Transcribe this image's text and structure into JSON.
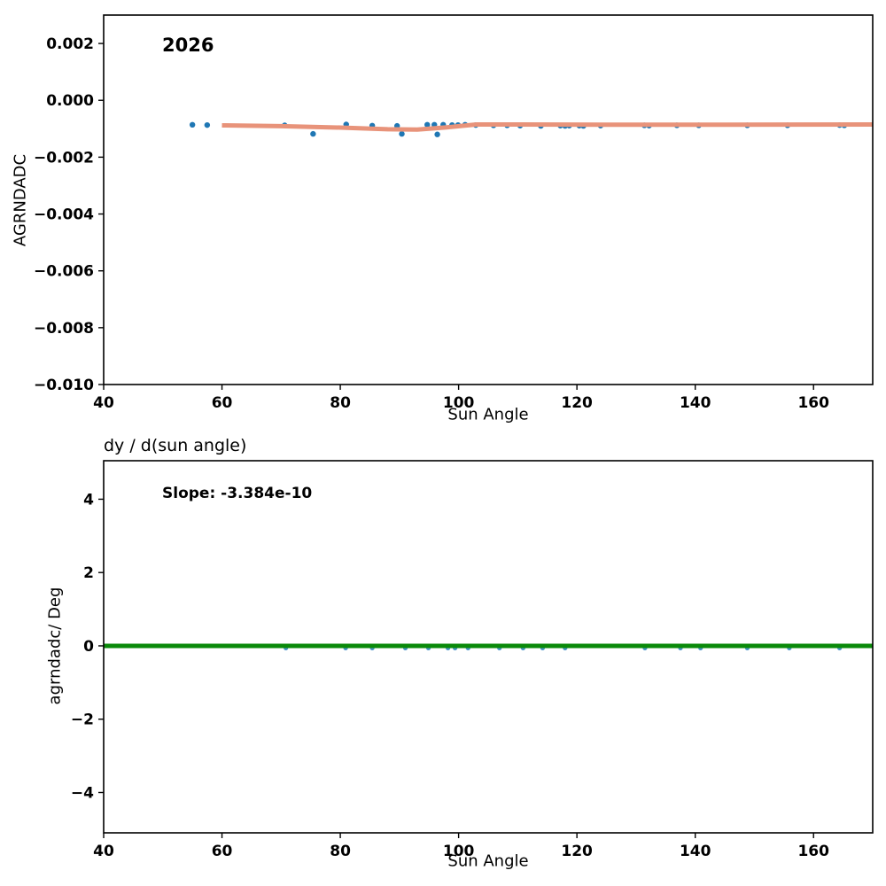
{
  "figure": {
    "background": "#ffffff",
    "spine_color": "#000000"
  },
  "chart_data": [
    {
      "type": "scatter",
      "name": "agrndadc-vs-sun-angle",
      "annotation": "2026",
      "xlabel": "Sun Angle",
      "ylabel": "AGRNDADC",
      "xlim": [
        40,
        170
      ],
      "ylim": [
        -0.01,
        0.003
      ],
      "grid": false,
      "x_ticks": [
        {
          "v": 40,
          "label": "40"
        },
        {
          "v": 60,
          "label": "60"
        },
        {
          "v": 80,
          "label": "80"
        },
        {
          "v": 100,
          "label": "100"
        },
        {
          "v": 120,
          "label": "120"
        },
        {
          "v": 140,
          "label": "140"
        },
        {
          "v": 160,
          "label": "160"
        }
      ],
      "y_ticks": [
        {
          "v": 0.002,
          "label": "0.002"
        },
        {
          "v": 0.0,
          "label": "0.000"
        },
        {
          "v": -0.002,
          "label": "−0.002"
        },
        {
          "v": -0.004,
          "label": "−0.004"
        },
        {
          "v": -0.006,
          "label": "−0.006"
        },
        {
          "v": -0.008,
          "label": "−0.008"
        },
        {
          "v": -0.01,
          "label": "−0.010"
        }
      ],
      "point_color": "#1f77b4",
      "point_radius": 3.2,
      "points": [
        [
          55.0,
          -0.00086
        ],
        [
          57.5,
          -0.00087
        ],
        [
          70.6,
          -0.00088
        ],
        [
          75.4,
          -0.00118
        ],
        [
          81.0,
          -0.00085
        ],
        [
          85.4,
          -0.00089
        ],
        [
          89.6,
          -0.0009
        ],
        [
          90.4,
          -0.00118
        ],
        [
          94.7,
          -0.00086
        ],
        [
          95.9,
          -0.00086
        ],
        [
          96.4,
          -0.0012
        ],
        [
          97.4,
          -0.00086
        ],
        [
          98.9,
          -0.00087
        ],
        [
          99.9,
          -0.00087
        ],
        [
          101.1,
          -0.00086
        ],
        [
          102.9,
          -0.00087
        ],
        [
          105.9,
          -0.00088
        ],
        [
          108.2,
          -0.00088
        ],
        [
          110.4,
          -0.00089
        ],
        [
          113.9,
          -0.0009
        ],
        [
          117.2,
          -0.00089
        ],
        [
          118.0,
          -0.0009
        ],
        [
          118.7,
          -0.00089
        ],
        [
          120.4,
          -0.00089
        ],
        [
          121.1,
          -0.0009
        ],
        [
          124.0,
          -0.00089
        ],
        [
          131.4,
          -0.00088
        ],
        [
          132.2,
          -0.00089
        ],
        [
          136.9,
          -0.00088
        ],
        [
          140.6,
          -0.00088
        ],
        [
          148.8,
          -0.00088
        ],
        [
          155.6,
          -0.00088
        ],
        [
          164.4,
          -0.00087
        ],
        [
          165.2,
          -0.00088
        ]
      ],
      "trend_line": {
        "name": "lowess-fit-line",
        "color": "#e8937a",
        "width": 5,
        "points": [
          [
            60,
            -0.00088
          ],
          [
            70,
            -0.00091
          ],
          [
            80,
            -0.00096
          ],
          [
            88,
            -0.00102
          ],
          [
            93,
            -0.00103
          ],
          [
            98,
            -0.00095
          ],
          [
            103,
            -0.00085
          ],
          [
            110,
            -0.00085
          ],
          [
            125,
            -0.00086
          ],
          [
            145,
            -0.00086
          ],
          [
            170,
            -0.00085
          ]
        ]
      }
    },
    {
      "type": "scatter",
      "name": "derivative-vs-sun-angle",
      "title": "dy / d(sun angle)",
      "annotation": "Slope: -3.384e-10",
      "slope": "-3.384e-10",
      "xlabel": "Sun Angle",
      "ylabel": "agrndadc/ Deg",
      "xlim": [
        40,
        170
      ],
      "ylim": [
        -5.1,
        5.05
      ],
      "grid": false,
      "x_ticks": [
        {
          "v": 40,
          "label": "40"
        },
        {
          "v": 60,
          "label": "60"
        },
        {
          "v": 80,
          "label": "80"
        },
        {
          "v": 100,
          "label": "100"
        },
        {
          "v": 120,
          "label": "120"
        },
        {
          "v": 140,
          "label": "140"
        },
        {
          "v": 160,
          "label": "160"
        }
      ],
      "y_ticks": [
        {
          "v": 4,
          "label": "4"
        },
        {
          "v": 2,
          "label": "2"
        },
        {
          "v": 0,
          "label": "0"
        },
        {
          "v": -2,
          "label": "−2"
        },
        {
          "v": -4,
          "label": "−4"
        }
      ],
      "point_color": "#4a94c8",
      "point_radius": 2.6,
      "points": [
        [
          70.8,
          -0.06
        ],
        [
          80.9,
          -0.06
        ],
        [
          85.4,
          -0.06
        ],
        [
          91.0,
          -0.06
        ],
        [
          94.9,
          -0.06
        ],
        [
          98.2,
          -0.06
        ],
        [
          99.4,
          -0.06
        ],
        [
          101.6,
          -0.06
        ],
        [
          106.9,
          -0.06
        ],
        [
          110.9,
          -0.06
        ],
        [
          114.2,
          -0.06
        ],
        [
          118.0,
          -0.06
        ],
        [
          131.5,
          -0.06
        ],
        [
          137.5,
          -0.06
        ],
        [
          140.9,
          -0.06
        ],
        [
          148.8,
          -0.06
        ],
        [
          155.9,
          -0.06
        ],
        [
          164.4,
          -0.06
        ]
      ],
      "trend_line": {
        "name": "zero-slope-line",
        "color": "#0a8a0a",
        "width": 5,
        "points": [
          [
            40,
            0
          ],
          [
            170,
            0
          ]
        ]
      }
    }
  ]
}
